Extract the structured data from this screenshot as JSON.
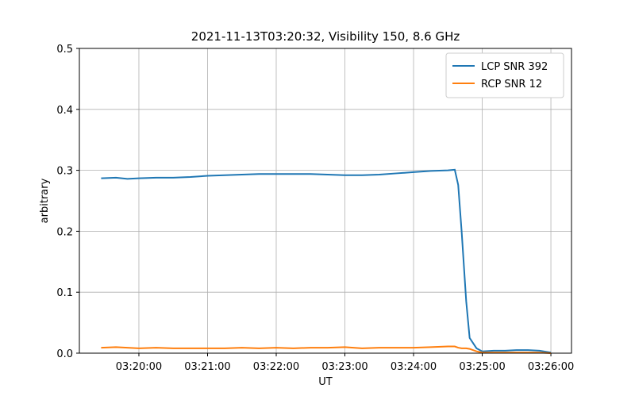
{
  "chart_data": {
    "type": "line",
    "title": "2021-11-13T03:20:32, Visibility 150, 8.6 GHz",
    "x_label": "UT",
    "y_label": "arbitrary",
    "x": [
      "03:19:27",
      "03:19:40",
      "03:19:50",
      "03:20:00",
      "03:20:15",
      "03:20:30",
      "03:20:45",
      "03:21:00",
      "03:21:15",
      "03:21:30",
      "03:21:45",
      "03:22:00",
      "03:22:15",
      "03:22:30",
      "03:22:45",
      "03:23:00",
      "03:23:15",
      "03:23:30",
      "03:23:45",
      "03:24:00",
      "03:24:15",
      "03:24:30",
      "03:24:36",
      "03:24:39",
      "03:24:42",
      "03:24:46",
      "03:24:49",
      "03:24:55",
      "03:25:00",
      "03:25:10",
      "03:25:20",
      "03:25:30",
      "03:25:40",
      "03:25:50",
      "03:26:00"
    ],
    "series": [
      {
        "name": "LCP SNR 392",
        "color": "#1f77b4",
        "values": [
          0.287,
          0.288,
          0.286,
          0.287,
          0.288,
          0.288,
          0.289,
          0.291,
          0.292,
          0.293,
          0.294,
          0.294,
          0.294,
          0.294,
          0.293,
          0.292,
          0.292,
          0.293,
          0.295,
          0.297,
          0.299,
          0.3,
          0.301,
          0.276,
          0.2,
          0.085,
          0.025,
          0.008,
          0.003,
          0.004,
          0.004,
          0.005,
          0.005,
          0.004,
          0.001
        ]
      },
      {
        "name": "RCP SNR 12",
        "color": "#ff7f0e",
        "values": [
          0.009,
          0.01,
          0.009,
          0.008,
          0.009,
          0.008,
          0.008,
          0.008,
          0.008,
          0.009,
          0.008,
          0.009,
          0.008,
          0.009,
          0.009,
          0.01,
          0.008,
          0.009,
          0.009,
          0.009,
          0.01,
          0.011,
          0.011,
          0.009,
          0.008,
          0.008,
          0.007,
          0.003,
          0.001,
          0.001,
          0.001,
          0.001,
          0.001,
          0.001,
          0.0
        ]
      }
    ],
    "xlim": [
      "03:19:08",
      "03:26:18"
    ],
    "xticks": [
      "03:20:00",
      "03:21:00",
      "03:22:00",
      "03:23:00",
      "03:24:00",
      "03:25:00",
      "03:26:00"
    ],
    "ylim": [
      0,
      0.5
    ],
    "yticks": [
      {
        "value": 0,
        "label": "0.0"
      },
      0.1,
      0.2,
      0.3,
      0.4,
      0.5
    ],
    "grid": true,
    "legend": "upper right"
  }
}
